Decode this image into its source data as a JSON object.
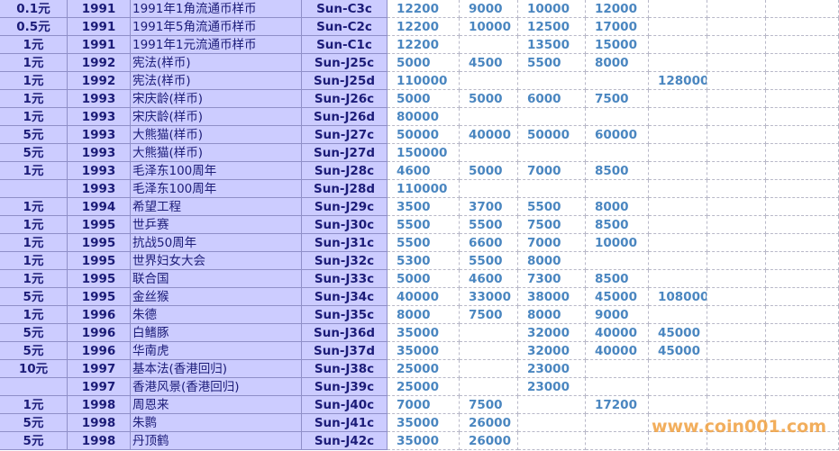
{
  "table": {
    "rows": [
      [
        "0.1元",
        1991,
        "1991年1角流通币样币",
        "Sun-C3c",
        12200,
        9000,
        10000,
        12000,
        null
      ],
      [
        "0.5元",
        1991,
        "1991年5角流通币样币",
        "Sun-C2c",
        12200,
        10000,
        12500,
        17000,
        null
      ],
      [
        "1元",
        1991,
        "1991年1元流通币样币",
        "Sun-C1c",
        12200,
        null,
        13500,
        15000,
        null
      ],
      [
        "1元",
        1992,
        "宪法(样币)",
        "Sun-J25c",
        5000,
        4500,
        5500,
        8000,
        null
      ],
      [
        "1元",
        1992,
        "宪法(样币)",
        "Sun-J25d",
        110000,
        null,
        null,
        null,
        128000
      ],
      [
        "1元",
        1993,
        "宋庆龄(样币)",
        "Sun-J26c",
        5000,
        5000,
        6000,
        7500,
        null
      ],
      [
        "1元",
        1993,
        "宋庆龄(样币)",
        "Sun-J26d",
        80000,
        null,
        null,
        null,
        null
      ],
      [
        "5元",
        1993,
        "大熊猫(样币)",
        "Sun-J27c",
        50000,
        40000,
        50000,
        60000,
        null
      ],
      [
        "5元",
        1993,
        "大熊猫(样币)",
        "Sun-J27d",
        150000,
        null,
        null,
        null,
        null
      ],
      [
        "1元",
        1993,
        "毛泽东100周年",
        "Sun-J28c",
        4600,
        5000,
        7000,
        8500,
        null
      ],
      [
        null,
        1993,
        "毛泽东100周年",
        "Sun-J28d",
        110000,
        null,
        null,
        null,
        null
      ],
      [
        "1元",
        1994,
        "希望工程",
        "Sun-J29c",
        3500,
        3700,
        5500,
        8000,
        null
      ],
      [
        "1元",
        1995,
        "世乒赛",
        "Sun-J30c",
        5500,
        5500,
        7500,
        8500,
        null
      ],
      [
        "1元",
        1995,
        "抗战50周年",
        "Sun-J31c",
        5500,
        6600,
        7000,
        10000,
        null
      ],
      [
        "1元",
        1995,
        "世界妇女大会",
        "Sun-J32c",
        5300,
        5500,
        8000,
        null,
        null
      ],
      [
        "1元",
        1995,
        "联合国",
        "Sun-J33c",
        5000,
        4600,
        7300,
        8500,
        null
      ],
      [
        "5元",
        1995,
        "金丝猴",
        "Sun-J34c",
        40000,
        33000,
        38000,
        45000,
        108000
      ],
      [
        "1元",
        1996,
        "朱德",
        "Sun-J35c",
        8000,
        7500,
        8000,
        9000,
        null
      ],
      [
        "5元",
        1996,
        "白鳍豚",
        "Sun-J36d",
        35000,
        null,
        32000,
        40000,
        45000
      ],
      [
        "5元",
        1996,
        "华南虎",
        "Sun-J37d",
        35000,
        null,
        32000,
        40000,
        45000
      ],
      [
        "10元",
        1997,
        "基本法(香港回归)",
        "Sun-J38c",
        25000,
        null,
        23000,
        null,
        null
      ],
      [
        null,
        1997,
        "香港风景(香港回归)",
        "Sun-J39c",
        25000,
        null,
        23000,
        null,
        null
      ],
      [
        "1元",
        1998,
        "周恩来",
        "Sun-J40c",
        7000,
        7500,
        null,
        17200,
        null
      ],
      [
        "5元",
        1998,
        "朱鹮",
        "Sun-J41c",
        35000,
        26000,
        null,
        null,
        null
      ],
      [
        "5元",
        1998,
        "丹顶鹤",
        "Sun-J42c",
        35000,
        26000,
        null,
        null,
        null
      ]
    ]
  },
  "watermark": "www.coin001.com"
}
